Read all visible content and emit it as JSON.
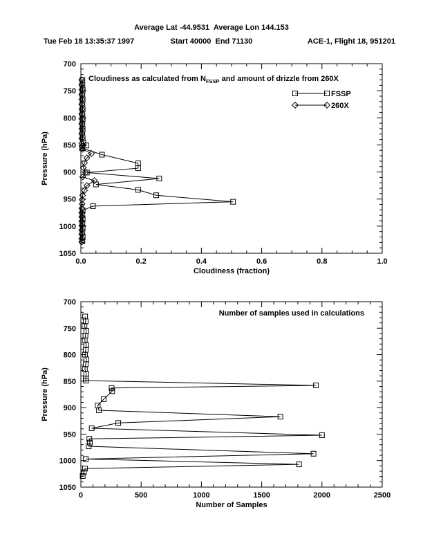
{
  "header": {
    "line1": "Average Lat -44.9531  Average Lon 144.153",
    "timestamp": "Tue Feb 18 13:35:37 1997",
    "range": "Start 40000  End 71130",
    "flight": "ACE-1, Flight 18, 951201"
  },
  "colors": {
    "ink": "#000000",
    "paper": "#ffffff"
  },
  "chart_data": [
    {
      "type": "line",
      "title_parts": [
        {
          "text": "Cloudiness as calculated from N"
        },
        {
          "text": "FSSP",
          "sub": true
        },
        {
          "text": " and amount of drizzle from 260X"
        }
      ],
      "xlabel": "Cloudiness (fraction)",
      "ylabel": "Pressure (hPa)",
      "xlim": [
        0,
        1.0
      ],
      "ylim": [
        700,
        1050
      ],
      "xticks": [
        0,
        0.2,
        0.4,
        0.6,
        0.8,
        1.0
      ],
      "xtick_labels": [
        "0.0",
        "0.2",
        "0.4",
        "0.6",
        "0.8",
        "1.0"
      ],
      "yticks": [
        700,
        750,
        800,
        850,
        900,
        950,
        1000,
        1050
      ],
      "ytick_labels": [
        "700",
        "750",
        "800",
        "850",
        "900",
        "950",
        "1000",
        "1050"
      ],
      "x_minor": 0.05,
      "y_minor": 10,
      "grid": false,
      "legend_position": "upper-right",
      "legend": [
        {
          "name": "FSSP",
          "marker": "square"
        },
        {
          "name": "260X",
          "marker": "diamond"
        }
      ],
      "series": [
        {
          "name": "FSSP",
          "marker": "square",
          "points": [
            [
              730,
              0.005
            ],
            [
              739,
              0.005
            ],
            [
              748,
              0.006
            ],
            [
              757,
              0.005
            ],
            [
              766,
              0.006
            ],
            [
              775,
              0.005
            ],
            [
              784,
              0.006
            ],
            [
              793,
              0.005
            ],
            [
              802,
              0.006
            ],
            [
              811,
              0.005
            ],
            [
              820,
              0.006
            ],
            [
              829,
              0.005
            ],
            [
              838,
              0.006
            ],
            [
              847,
              0.008
            ],
            [
              851,
              0.018
            ],
            [
              856,
              0.004
            ],
            [
              868,
              0.07
            ],
            [
              884,
              0.19
            ],
            [
              893,
              0.19
            ],
            [
              901,
              0.02
            ],
            [
              912,
              0.26
            ],
            [
              923,
              0.05
            ],
            [
              933,
              0.19
            ],
            [
              943,
              0.25
            ],
            [
              955,
              0.505
            ],
            [
              963,
              0.04
            ],
            [
              971,
              0.006
            ],
            [
              979,
              0.005
            ],
            [
              987,
              0.006
            ],
            [
              995,
              0.005
            ],
            [
              1003,
              0.006
            ],
            [
              1012,
              0.005
            ],
            [
              1020,
              0.006
            ],
            [
              1028,
              0.005
            ]
          ]
        },
        {
          "name": "260X",
          "marker": "diamond",
          "points": [
            [
              730,
              0.003
            ],
            [
              739,
              0.003
            ],
            [
              748,
              0.003
            ],
            [
              757,
              0.003
            ],
            [
              766,
              0.003
            ],
            [
              775,
              0.003
            ],
            [
              784,
              0.003
            ],
            [
              793,
              0.003
            ],
            [
              802,
              0.003
            ],
            [
              811,
              0.003
            ],
            [
              820,
              0.003
            ],
            [
              829,
              0.003
            ],
            [
              838,
              0.003
            ],
            [
              847,
              0.003
            ],
            [
              852,
              0.004
            ],
            [
              858,
              0.006
            ],
            [
              866,
              0.035
            ],
            [
              874,
              0.02
            ],
            [
              883,
              0.012
            ],
            [
              892,
              0.008
            ],
            [
              901,
              0.016
            ],
            [
              909,
              0.006
            ],
            [
              916,
              0.045
            ],
            [
              925,
              0.02
            ],
            [
              934,
              0.012
            ],
            [
              943,
              0.006
            ],
            [
              951,
              0.004
            ],
            [
              959,
              0.004
            ],
            [
              967,
              0.003
            ],
            [
              975,
              0.003
            ],
            [
              983,
              0.003
            ],
            [
              991,
              0.003
            ],
            [
              999,
              0.003
            ],
            [
              1007,
              0.003
            ],
            [
              1015,
              0.003
            ],
            [
              1023,
              0.003
            ],
            [
              1029,
              0.003
            ]
          ]
        }
      ]
    },
    {
      "type": "line",
      "title_parts": [
        {
          "text": "Number of samples used in calculations"
        }
      ],
      "xlabel": "Number of Samples",
      "ylabel": "Pressure (hPa)",
      "xlim": [
        0,
        2500
      ],
      "ylim": [
        700,
        1050
      ],
      "xticks": [
        0,
        500,
        1000,
        1500,
        2000,
        2500
      ],
      "xtick_labels": [
        "0",
        "500",
        "1000",
        "1500",
        "2000",
        "2500"
      ],
      "yticks": [
        700,
        750,
        800,
        850,
        900,
        950,
        1000,
        1050
      ],
      "ytick_labels": [
        "700",
        "750",
        "800",
        "850",
        "900",
        "950",
        "1000",
        "1050"
      ],
      "x_minor": 100,
      "y_minor": 10,
      "grid": false,
      "series": [
        {
          "name": "Samples",
          "marker": "square",
          "points": [
            [
              728,
              35
            ],
            [
              737,
              40
            ],
            [
              746,
              30
            ],
            [
              755,
              45
            ],
            [
              764,
              38
            ],
            [
              773,
              32
            ],
            [
              782,
              45
            ],
            [
              791,
              40
            ],
            [
              800,
              34
            ],
            [
              809,
              46
            ],
            [
              818,
              40
            ],
            [
              827,
              33
            ],
            [
              836,
              45
            ],
            [
              845,
              40
            ],
            [
              849,
              42
            ],
            [
              858,
              1950
            ],
            [
              863,
              255
            ],
            [
              869,
              260
            ],
            [
              884,
              190
            ],
            [
              896,
              140
            ],
            [
              905,
              150
            ],
            [
              917,
              1655
            ],
            [
              929,
              310
            ],
            [
              939,
              90
            ],
            [
              952,
              2000
            ],
            [
              959,
              70
            ],
            [
              966,
              75
            ],
            [
              973,
              65
            ],
            [
              987,
              1930
            ],
            [
              997,
              40
            ],
            [
              1007,
              1810
            ],
            [
              1015,
              35
            ],
            [
              1022,
              25
            ],
            [
              1029,
              15
            ]
          ]
        }
      ]
    }
  ]
}
